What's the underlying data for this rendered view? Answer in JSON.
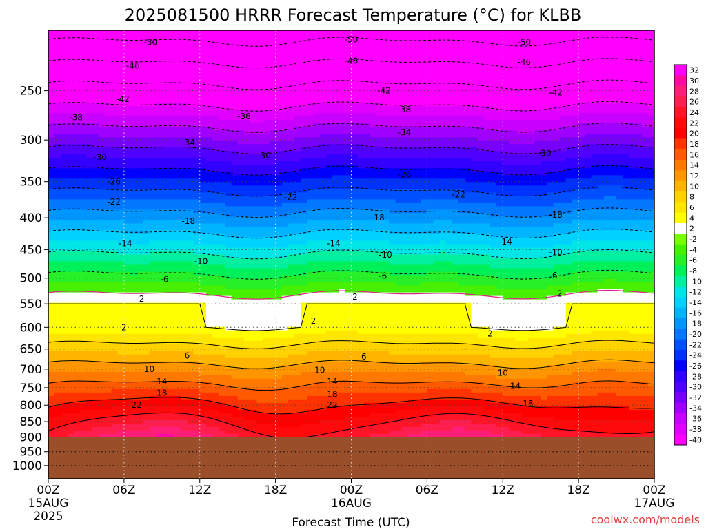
{
  "chart_data": {
    "type": "heatmap",
    "title": "2025081500 HRRR Forecast Temperature (°C) for KLBB",
    "xlabel": "Forecast Time (UTC)",
    "ylabel": "",
    "y_scale": "log",
    "y_reversed": true,
    "x_ticks": [
      {
        "h": 0,
        "label": "00Z",
        "sub1": "15AUG",
        "sub2": "2025"
      },
      {
        "h": 6,
        "label": "06Z",
        "sub1": "",
        "sub2": ""
      },
      {
        "h": 12,
        "label": "12Z",
        "sub1": "",
        "sub2": ""
      },
      {
        "h": 18,
        "label": "18Z",
        "sub1": "",
        "sub2": ""
      },
      {
        "h": 24,
        "label": "00Z",
        "sub1": "16AUG",
        "sub2": ""
      },
      {
        "h": 30,
        "label": "06Z",
        "sub1": "",
        "sub2": ""
      },
      {
        "h": 36,
        "label": "12Z",
        "sub1": "",
        "sub2": ""
      },
      {
        "h": 42,
        "label": "18Z",
        "sub1": "",
        "sub2": ""
      },
      {
        "h": 48,
        "label": "00Z",
        "sub1": "17AUG",
        "sub2": ""
      }
    ],
    "y_ticks": [
      250,
      300,
      350,
      400,
      450,
      500,
      550,
      600,
      650,
      700,
      750,
      800,
      850,
      900,
      950,
      1000
    ],
    "ylim": [
      1050,
      200
    ],
    "xlim": [
      0,
      48
    ],
    "surface_pressure": 900,
    "legend_placement": "right",
    "legend_levels": [
      32,
      30,
      28,
      26,
      24,
      22,
      20,
      18,
      16,
      14,
      12,
      10,
      8,
      6,
      4,
      2,
      -2,
      -4,
      -6,
      -8,
      -10,
      -12,
      -14,
      -16,
      -18,
      -20,
      -22,
      -24,
      -26,
      -28,
      -30,
      -32,
      -34,
      -36,
      -38,
      -40
    ],
    "legend_colors": [
      "#ff00ff",
      "#ff0a9e",
      "#ff1e78",
      "#ff1e50",
      "#ff1428",
      "#ff0a0a",
      "#ff0000",
      "#ff3200",
      "#ff5a00",
      "#ff7800",
      "#ff9600",
      "#ffb400",
      "#ffd200",
      "#ffe600",
      "#ffff00",
      "#ffffff",
      "#78ff00",
      "#46f000",
      "#28f028",
      "#00f05a",
      "#00f0a0",
      "#00e6e6",
      "#00d2ff",
      "#00b4ff",
      "#0096ff",
      "#0078ff",
      "#0050ff",
      "#0032ff",
      "#0000ff",
      "#3200ff",
      "#5000ff",
      "#7800ff",
      "#a000ff",
      "#c800ff",
      "#e100ff",
      "#ff00ff"
    ],
    "contour_labels": [
      {
        "v": "-50",
        "h": 8.1,
        "p": 209
      },
      {
        "v": "-50",
        "h": 24.0,
        "p": 207
      },
      {
        "v": "-50",
        "h": 37.7,
        "p": 209
      },
      {
        "v": "-46",
        "h": 6.7,
        "p": 228
      },
      {
        "v": "-46",
        "h": 24.0,
        "p": 224
      },
      {
        "v": "-46",
        "h": 37.7,
        "p": 225
      },
      {
        "v": "-42",
        "h": 5.9,
        "p": 258
      },
      {
        "v": "-42",
        "h": 26.6,
        "p": 250
      },
      {
        "v": "-42",
        "h": 40.2,
        "p": 252
      },
      {
        "v": "-38",
        "h": 2.2,
        "p": 276
      },
      {
        "v": "-38",
        "h": 15.5,
        "p": 275
      },
      {
        "v": "-38",
        "h": 28.2,
        "p": 268
      },
      {
        "v": "-34",
        "h": 11.1,
        "p": 303
      },
      {
        "v": "-34",
        "h": 28.2,
        "p": 292
      },
      {
        "v": "-30",
        "h": 4.1,
        "p": 320
      },
      {
        "v": "-30",
        "h": 17.1,
        "p": 318
      },
      {
        "v": "-30",
        "h": 39.3,
        "p": 315
      },
      {
        "v": "-26",
        "h": 5.2,
        "p": 350
      },
      {
        "v": "-26",
        "h": 28.2,
        "p": 341
      },
      {
        "v": "-22",
        "h": 5.2,
        "p": 377
      },
      {
        "v": "-22",
        "h": 19.2,
        "p": 371
      },
      {
        "v": "-22",
        "h": 32.5,
        "p": 367
      },
      {
        "v": "-18",
        "h": 11.1,
        "p": 405
      },
      {
        "v": "-18",
        "h": 26.1,
        "p": 400
      },
      {
        "v": "-18",
        "h": 40.2,
        "p": 396
      },
      {
        "v": "-14",
        "h": 6.1,
        "p": 440
      },
      {
        "v": "-14",
        "h": 22.6,
        "p": 440
      },
      {
        "v": "-14",
        "h": 36.2,
        "p": 437
      },
      {
        "v": "-10",
        "h": 12.1,
        "p": 470
      },
      {
        "v": "-10",
        "h": 26.7,
        "p": 459
      },
      {
        "v": "-10",
        "h": 40.2,
        "p": 455
      },
      {
        "v": "-6",
        "h": 9.2,
        "p": 502
      },
      {
        "v": "-6",
        "h": 26.5,
        "p": 496
      },
      {
        "v": "-6",
        "h": 40.0,
        "p": 495
      },
      {
        "v": "2",
        "h": 7.4,
        "p": 540
      },
      {
        "v": "2",
        "h": 24.3,
        "p": 536
      },
      {
        "v": "2",
        "h": 40.5,
        "p": 530
      },
      {
        "v": "2",
        "h": 6.0,
        "p": 600
      },
      {
        "v": "2",
        "h": 21.0,
        "p": 586
      },
      {
        "v": "2",
        "h": 35.0,
        "p": 614
      },
      {
        "v": "6",
        "h": 11.0,
        "p": 666
      },
      {
        "v": "6",
        "h": 25.0,
        "p": 669
      },
      {
        "v": "10",
        "h": 8.0,
        "p": 700
      },
      {
        "v": "10",
        "h": 21.5,
        "p": 703
      },
      {
        "v": "10",
        "h": 36.0,
        "p": 710
      },
      {
        "v": "14",
        "h": 9.0,
        "p": 733
      },
      {
        "v": "14",
        "h": 22.5,
        "p": 733
      },
      {
        "v": "14",
        "h": 37.0,
        "p": 745
      },
      {
        "v": "18",
        "h": 9.0,
        "p": 765
      },
      {
        "v": "18",
        "h": 22.5,
        "p": 769
      },
      {
        "v": "18",
        "h": 38.0,
        "p": 795
      },
      {
        "v": "22",
        "h": 7.0,
        "p": 800
      },
      {
        "v": "22",
        "h": 22.5,
        "p": 800
      }
    ]
  },
  "credit": "coolwx.com/models"
}
